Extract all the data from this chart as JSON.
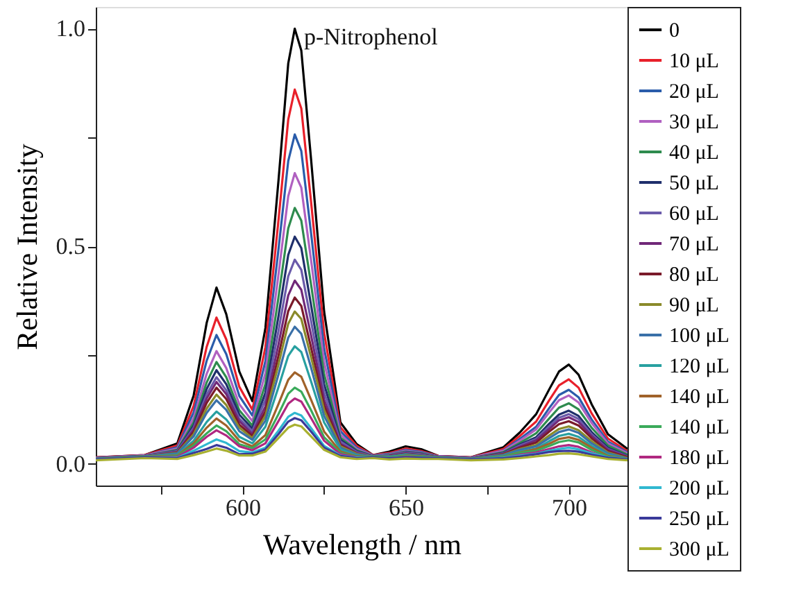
{
  "chart_data": {
    "type": "line",
    "xlabel": "Wavelength / nm",
    "ylabel": "Relative Intensity",
    "annotations": [
      "p-Nitrophenol"
    ],
    "xlim": [
      555,
      718
    ],
    "ylim": [
      -0.05,
      1.05
    ],
    "xticks": [
      {
        "value": 575,
        "label": null
      },
      600,
      {
        "value": 625,
        "label": null
      },
      650,
      {
        "value": 675,
        "label": null
      },
      700
    ],
    "yticks": [
      {
        "value": 0,
        "label": "0.0"
      },
      {
        "value": 0.25,
        "label": null
      },
      0.5,
      {
        "value": 0.75,
        "label": null
      },
      {
        "value": 1,
        "label": "1.0"
      }
    ],
    "grid": false,
    "legend": "right",
    "line_style": "solid",
    "x": [
      555,
      570,
      580,
      585,
      589,
      592,
      595,
      599,
      603,
      607,
      611,
      614,
      616,
      618,
      621,
      625,
      630,
      635,
      640,
      645,
      650,
      655,
      660,
      670,
      680,
      685,
      690,
      694,
      697,
      700,
      703,
      707,
      712,
      718
    ],
    "series": [
      {
        "name": "0",
        "color": "#000000",
        "values": [
          0.015,
          0.02,
          0.047,
          0.157,
          0.324,
          0.405,
          0.344,
          0.212,
          0.144,
          0.312,
          0.65,
          0.92,
          1.0,
          0.95,
          0.7,
          0.35,
          0.095,
          0.045,
          0.02,
          0.028,
          0.04,
          0.033,
          0.018,
          0.015,
          0.038,
          0.072,
          0.114,
          0.171,
          0.212,
          0.228,
          0.205,
          0.137,
          0.068,
          0.034
        ]
      },
      {
        "name": "10 μL",
        "color": "#e8202a",
        "values": [
          0.015,
          0.02,
          0.042,
          0.133,
          0.269,
          0.336,
          0.286,
          0.177,
          0.124,
          0.268,
          0.559,
          0.791,
          0.86,
          0.817,
          0.602,
          0.301,
          0.084,
          0.041,
          0.02,
          0.025,
          0.035,
          0.029,
          0.018,
          0.015,
          0.034,
          0.064,
          0.097,
          0.146,
          0.18,
          0.194,
          0.175,
          0.116,
          0.058,
          0.029
        ]
      },
      {
        "name": "20 μL",
        "color": "#2a5caa",
        "values": [
          0.014,
          0.019,
          0.038,
          0.118,
          0.237,
          0.296,
          0.252,
          0.156,
          0.111,
          0.236,
          0.492,
          0.696,
          0.757,
          0.719,
          0.53,
          0.265,
          0.075,
          0.037,
          0.019,
          0.023,
          0.032,
          0.027,
          0.017,
          0.014,
          0.031,
          0.057,
          0.085,
          0.128,
          0.158,
          0.17,
          0.153,
          0.102,
          0.051,
          0.026
        ]
      },
      {
        "name": "30 μL",
        "color": "#b060c0",
        "values": [
          0.014,
          0.019,
          0.035,
          0.105,
          0.207,
          0.259,
          0.22,
          0.137,
          0.098,
          0.208,
          0.434,
          0.615,
          0.668,
          0.635,
          0.468,
          0.234,
          0.067,
          0.034,
          0.019,
          0.022,
          0.03,
          0.025,
          0.017,
          0.014,
          0.03,
          0.053,
          0.079,
          0.118,
          0.146,
          0.157,
          0.141,
          0.094,
          0.047,
          0.024
        ]
      },
      {
        "name": "40 μL",
        "color": "#2e8b4e",
        "values": [
          0.013,
          0.018,
          0.032,
          0.095,
          0.187,
          0.234,
          0.199,
          0.123,
          0.088,
          0.183,
          0.382,
          0.541,
          0.588,
          0.559,
          0.412,
          0.206,
          0.06,
          0.031,
          0.018,
          0.021,
          0.028,
          0.024,
          0.016,
          0.013,
          0.027,
          0.048,
          0.07,
          0.104,
          0.129,
          0.139,
          0.125,
          0.083,
          0.042,
          0.021
        ]
      },
      {
        "name": "50 μL",
        "color": "#1f2f6b",
        "values": [
          0.013,
          0.018,
          0.03,
          0.088,
          0.172,
          0.215,
          0.183,
          0.113,
          0.081,
          0.163,
          0.339,
          0.48,
          0.522,
          0.496,
          0.365,
          0.183,
          0.055,
          0.029,
          0.018,
          0.02,
          0.027,
          0.023,
          0.016,
          0.013,
          0.025,
          0.044,
          0.061,
          0.092,
          0.113,
          0.122,
          0.11,
          0.073,
          0.037,
          0.018
        ]
      },
      {
        "name": "60 μL",
        "color": "#6a5aaa",
        "values": [
          0.013,
          0.018,
          0.029,
          0.083,
          0.159,
          0.199,
          0.169,
          0.104,
          0.075,
          0.147,
          0.305,
          0.431,
          0.469,
          0.446,
          0.328,
          0.164,
          0.051,
          0.027,
          0.018,
          0.02,
          0.026,
          0.022,
          0.016,
          0.013,
          0.024,
          0.042,
          0.057,
          0.086,
          0.106,
          0.114,
          0.103,
          0.068,
          0.034,
          0.017
        ]
      },
      {
        "name": "70 μL",
        "color": "#702878",
        "values": [
          0.012,
          0.017,
          0.027,
          0.078,
          0.15,
          0.188,
          0.16,
          0.098,
          0.069,
          0.132,
          0.274,
          0.387,
          0.421,
          0.4,
          0.295,
          0.147,
          0.046,
          0.025,
          0.017,
          0.018,
          0.024,
          0.02,
          0.015,
          0.012,
          0.023,
          0.039,
          0.054,
          0.08,
          0.1,
          0.107,
          0.096,
          0.064,
          0.032,
          0.016
        ]
      },
      {
        "name": "80 μL",
        "color": "#7a1a2a",
        "values": [
          0.012,
          0.017,
          0.026,
          0.073,
          0.14,
          0.175,
          0.149,
          0.09,
          0.064,
          0.12,
          0.248,
          0.351,
          0.382,
          0.363,
          0.267,
          0.134,
          0.043,
          0.023,
          0.017,
          0.018,
          0.023,
          0.02,
          0.015,
          0.012,
          0.022,
          0.037,
          0.049,
          0.074,
          0.091,
          0.098,
          0.088,
          0.059,
          0.029,
          0.015
        ]
      },
      {
        "name": "90 μL",
        "color": "#8a8a2a",
        "values": [
          0.012,
          0.017,
          0.025,
          0.068,
          0.127,
          0.159,
          0.135,
          0.083,
          0.059,
          0.11,
          0.228,
          0.322,
          0.35,
          0.333,
          0.245,
          0.123,
          0.04,
          0.023,
          0.017,
          0.017,
          0.022,
          0.019,
          0.015,
          0.012,
          0.021,
          0.034,
          0.043,
          0.065,
          0.08,
          0.086,
          0.077,
          0.052,
          0.026,
          0.013
        ]
      },
      {
        "name": "100 μL",
        "color": "#3a70a8",
        "values": [
          0.012,
          0.017,
          0.024,
          0.063,
          0.117,
          0.146,
          0.124,
          0.075,
          0.055,
          0.099,
          0.205,
          0.29,
          0.315,
          0.299,
          0.221,
          0.11,
          0.037,
          0.021,
          0.017,
          0.017,
          0.022,
          0.019,
          0.015,
          0.012,
          0.02,
          0.032,
          0.04,
          0.059,
          0.073,
          0.079,
          0.071,
          0.047,
          0.024,
          0.012
        ]
      },
      {
        "name": "120 μL",
        "color": "#28a0a0",
        "values": [
          0.011,
          0.016,
          0.021,
          0.053,
          0.096,
          0.12,
          0.102,
          0.062,
          0.047,
          0.085,
          0.176,
          0.248,
          0.27,
          0.257,
          0.189,
          0.095,
          0.033,
          0.019,
          0.016,
          0.016,
          0.02,
          0.017,
          0.014,
          0.011,
          0.018,
          0.028,
          0.035,
          0.052,
          0.064,
          0.069,
          0.062,
          0.041,
          0.021,
          0.011
        ]
      },
      {
        "name": "140 μL",
        "color": "#a0622a",
        "values": [
          0.011,
          0.016,
          0.019,
          0.047,
          0.083,
          0.104,
          0.088,
          0.053,
          0.04,
          0.066,
          0.137,
          0.193,
          0.21,
          0.2,
          0.147,
          0.074,
          0.028,
          0.017,
          0.016,
          0.015,
          0.019,
          0.017,
          0.014,
          0.011,
          0.017,
          0.026,
          0.034,
          0.046,
          0.057,
          0.061,
          0.055,
          0.037,
          0.018,
          0.011
        ]
      },
      {
        "name": "140 μL",
        "color": "#3aaa5a",
        "values": [
          0.011,
          0.016,
          0.018,
          0.042,
          0.07,
          0.088,
          0.075,
          0.045,
          0.036,
          0.056,
          0.114,
          0.161,
          0.175,
          0.166,
          0.123,
          0.061,
          0.025,
          0.016,
          0.016,
          0.015,
          0.018,
          0.016,
          0.014,
          0.011,
          0.016,
          0.025,
          0.03,
          0.041,
          0.05,
          0.054,
          0.049,
          0.032,
          0.016,
          0.011
        ]
      },
      {
        "name": "180 μL",
        "color": "#b02880",
        "values": [
          0.01,
          0.015,
          0.016,
          0.037,
          0.062,
          0.077,
          0.065,
          0.04,
          0.031,
          0.047,
          0.098,
          0.138,
          0.15,
          0.143,
          0.105,
          0.053,
          0.022,
          0.015,
          0.015,
          0.013,
          0.016,
          0.014,
          0.013,
          0.01,
          0.014,
          0.021,
          0.026,
          0.034,
          0.04,
          0.043,
          0.039,
          0.026,
          0.013,
          0.01
        ]
      },
      {
        "name": "200 μL",
        "color": "#30b8d0",
        "values": [
          0.01,
          0.015,
          0.014,
          0.03,
          0.045,
          0.056,
          0.048,
          0.029,
          0.026,
          0.037,
          0.076,
          0.108,
          0.117,
          0.111,
          0.082,
          0.041,
          0.019,
          0.014,
          0.015,
          0.013,
          0.015,
          0.014,
          0.013,
          0.01,
          0.014,
          0.019,
          0.023,
          0.03,
          0.034,
          0.037,
          0.033,
          0.024,
          0.015,
          0.011
        ]
      },
      {
        "name": "250 μL",
        "color": "#3a3a9a",
        "values": [
          0.01,
          0.015,
          0.013,
          0.025,
          0.034,
          0.043,
          0.037,
          0.022,
          0.023,
          0.033,
          0.068,
          0.097,
          0.105,
          0.1,
          0.074,
          0.037,
          0.018,
          0.013,
          0.015,
          0.013,
          0.015,
          0.014,
          0.013,
          0.01,
          0.013,
          0.017,
          0.022,
          0.027,
          0.029,
          0.03,
          0.028,
          0.021,
          0.014,
          0.01
        ]
      },
      {
        "name": "300 μL",
        "color": "#a8b030",
        "values": [
          0.008,
          0.013,
          0.011,
          0.02,
          0.028,
          0.035,
          0.03,
          0.019,
          0.019,
          0.028,
          0.059,
          0.083,
          0.09,
          0.086,
          0.063,
          0.032,
          0.015,
          0.011,
          0.013,
          0.01,
          0.012,
          0.011,
          0.011,
          0.008,
          0.01,
          0.013,
          0.017,
          0.02,
          0.023,
          0.024,
          0.022,
          0.017,
          0.011,
          0.008
        ]
      }
    ]
  }
}
